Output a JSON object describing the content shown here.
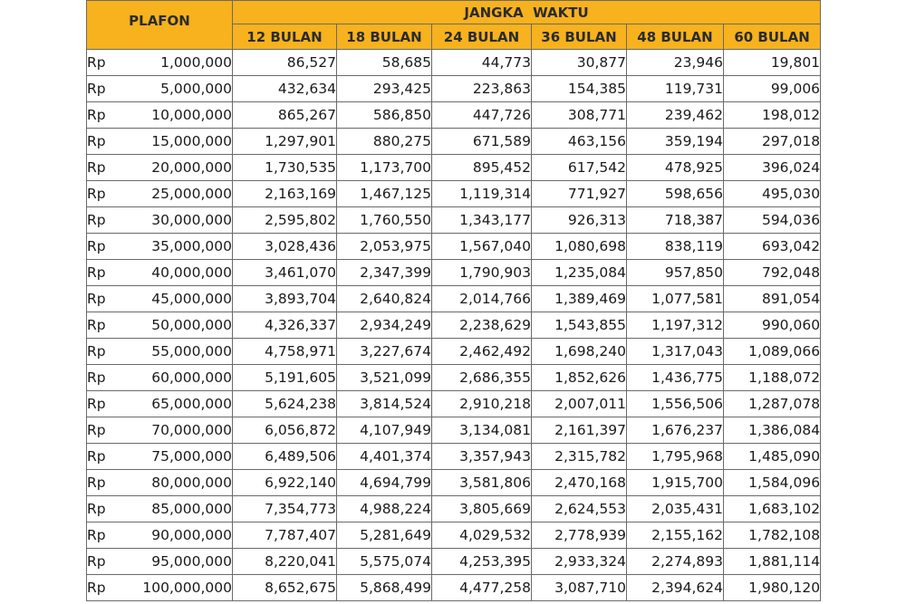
{
  "table": {
    "plafon_header": "PLAFON",
    "term_header": "JANGKA  WAKTU",
    "currency": "Rp",
    "terms": [
      "12 BULAN",
      "18 BULAN",
      "24 BULAN",
      "36 BULAN",
      "48 BULAN",
      "60 BULAN"
    ],
    "header_color": "#f7b21d",
    "rows": [
      {
        "amount": "1,000,000",
        "values": [
          "86,527",
          "58,685",
          "44,773",
          "30,877",
          "23,946",
          "19,801"
        ]
      },
      {
        "amount": "5,000,000",
        "values": [
          "432,634",
          "293,425",
          "223,863",
          "154,385",
          "119,731",
          "99,006"
        ]
      },
      {
        "amount": "10,000,000",
        "values": [
          "865,267",
          "586,850",
          "447,726",
          "308,771",
          "239,462",
          "198,012"
        ]
      },
      {
        "amount": "15,000,000",
        "values": [
          "1,297,901",
          "880,275",
          "671,589",
          "463,156",
          "359,194",
          "297,018"
        ]
      },
      {
        "amount": "20,000,000",
        "values": [
          "1,730,535",
          "1,173,700",
          "895,452",
          "617,542",
          "478,925",
          "396,024"
        ]
      },
      {
        "amount": "25,000,000",
        "values": [
          "2,163,169",
          "1,467,125",
          "1,119,314",
          "771,927",
          "598,656",
          "495,030"
        ]
      },
      {
        "amount": "30,000,000",
        "values": [
          "2,595,802",
          "1,760,550",
          "1,343,177",
          "926,313",
          "718,387",
          "594,036"
        ]
      },
      {
        "amount": "35,000,000",
        "values": [
          "3,028,436",
          "2,053,975",
          "1,567,040",
          "1,080,698",
          "838,119",
          "693,042"
        ]
      },
      {
        "amount": "40,000,000",
        "values": [
          "3,461,070",
          "2,347,399",
          "1,790,903",
          "1,235,084",
          "957,850",
          "792,048"
        ]
      },
      {
        "amount": "45,000,000",
        "values": [
          "3,893,704",
          "2,640,824",
          "2,014,766",
          "1,389,469",
          "1,077,581",
          "891,054"
        ]
      },
      {
        "amount": "50,000,000",
        "values": [
          "4,326,337",
          "2,934,249",
          "2,238,629",
          "1,543,855",
          "1,197,312",
          "990,060"
        ]
      },
      {
        "amount": "55,000,000",
        "values": [
          "4,758,971",
          "3,227,674",
          "2,462,492",
          "1,698,240",
          "1,317,043",
          "1,089,066"
        ]
      },
      {
        "amount": "60,000,000",
        "values": [
          "5,191,605",
          "3,521,099",
          "2,686,355",
          "1,852,626",
          "1,436,775",
          "1,188,072"
        ]
      },
      {
        "amount": "65,000,000",
        "values": [
          "5,624,238",
          "3,814,524",
          "2,910,218",
          "2,007,011",
          "1,556,506",
          "1,287,078"
        ]
      },
      {
        "amount": "70,000,000",
        "values": [
          "6,056,872",
          "4,107,949",
          "3,134,081",
          "2,161,397",
          "1,676,237",
          "1,386,084"
        ]
      },
      {
        "amount": "75,000,000",
        "values": [
          "6,489,506",
          "4,401,374",
          "3,357,943",
          "2,315,782",
          "1,795,968",
          "1,485,090"
        ]
      },
      {
        "amount": "80,000,000",
        "values": [
          "6,922,140",
          "4,694,799",
          "3,581,806",
          "2,470,168",
          "1,915,700",
          "1,584,096"
        ]
      },
      {
        "amount": "85,000,000",
        "values": [
          "7,354,773",
          "4,988,224",
          "3,805,669",
          "2,624,553",
          "2,035,431",
          "1,683,102"
        ]
      },
      {
        "amount": "90,000,000",
        "values": [
          "7,787,407",
          "5,281,649",
          "4,029,532",
          "2,778,939",
          "2,155,162",
          "1,782,108"
        ]
      },
      {
        "amount": "95,000,000",
        "values": [
          "8,220,041",
          "5,575,074",
          "4,253,395",
          "2,933,324",
          "2,274,893",
          "1,881,114"
        ]
      },
      {
        "amount": "100,000,000",
        "values": [
          "8,652,675",
          "5,868,499",
          "4,477,258",
          "3,087,710",
          "2,394,624",
          "1,980,120"
        ]
      }
    ]
  }
}
